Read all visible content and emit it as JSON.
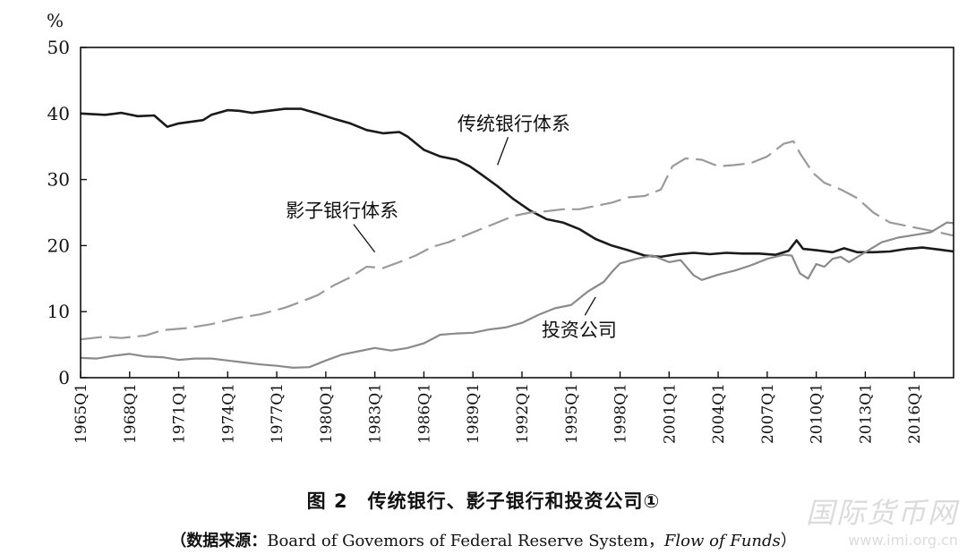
{
  "chart_data": {
    "type": "line",
    "y_unit": "%",
    "ylim": [
      0,
      50
    ],
    "yticks": [
      0,
      10,
      20,
      30,
      40,
      50
    ],
    "xlim": [
      1965.0,
      2018.4
    ],
    "xticks": [
      "1965Q1",
      "1968Q1",
      "1971Q1",
      "1974Q1",
      "1977Q1",
      "1980Q1",
      "1983Q1",
      "1986Q1",
      "1989Q1",
      "1992Q1",
      "1995Q1",
      "1998Q1",
      "2001Q1",
      "2004Q1",
      "2007Q1",
      "2010Q1",
      "2013Q1",
      "2016Q1"
    ],
    "grid": false,
    "series": [
      {
        "name": "传统银行体系",
        "color": "#1a1a1a",
        "style": "solid",
        "x": [
          1965.0,
          1966.5,
          1967.5,
          1968.5,
          1969.5,
          1970.3,
          1971.0,
          1972.5,
          1973.0,
          1974.0,
          1974.7,
          1975.5,
          1976.5,
          1977.5,
          1978.5,
          1979.5,
          1980.5,
          1981.5,
          1982.5,
          1983.5,
          1984.5,
          1985.0,
          1986.0,
          1987.0,
          1988.0,
          1988.8,
          1989.5,
          1990.5,
          1991.5,
          1992.5,
          1993.5,
          1994.5,
          1995.5,
          1996.5,
          1997.5,
          1998.5,
          1999.5,
          2000.5,
          2001.5,
          2002.5,
          2003.5,
          2004.5,
          2005.5,
          2006.5,
          2007.5,
          2008.3,
          2008.8,
          2009.2,
          2010.0,
          2011.0,
          2011.7,
          2012.5,
          2013.5,
          2014.5,
          2015.5,
          2016.5,
          2017.5,
          2018.4
        ],
        "values": [
          40.0,
          39.8,
          40.1,
          39.6,
          39.7,
          38.0,
          38.5,
          39.0,
          39.8,
          40.5,
          40.4,
          40.1,
          40.4,
          40.7,
          40.7,
          40.0,
          39.2,
          38.5,
          37.5,
          37.0,
          37.2,
          36.5,
          34.5,
          33.5,
          33.0,
          32.0,
          30.8,
          29.0,
          27.0,
          25.3,
          24.0,
          23.5,
          22.5,
          21.0,
          20.0,
          19.3,
          18.5,
          18.3,
          18.7,
          18.9,
          18.7,
          18.9,
          18.8,
          18.8,
          18.6,
          19.2,
          20.8,
          19.5,
          19.3,
          19.0,
          19.6,
          19.0,
          19.0,
          19.1,
          19.5,
          19.7,
          19.4,
          19.1
        ]
      },
      {
        "name": "影子银行体系",
        "color": "#9a9a9a",
        "style": "dashed",
        "x": [
          1965.0,
          1966.5,
          1967.5,
          1969.0,
          1970.0,
          1971.5,
          1973.0,
          1974.5,
          1976.0,
          1977.5,
          1978.5,
          1979.5,
          1980.5,
          1981.5,
          1982.5,
          1983.5,
          1984.5,
          1985.5,
          1986.5,
          1987.5,
          1988.5,
          1989.5,
          1990.5,
          1991.5,
          1992.5,
          1993.5,
          1994.5,
          1995.5,
          1996.5,
          1997.5,
          1998.5,
          1999.5,
          2000.5,
          2001.2,
          2002.0,
          2003.0,
          2004.0,
          2005.0,
          2006.0,
          2007.0,
          2008.0,
          2008.6,
          2009.0,
          2009.8,
          2010.5,
          2011.5,
          2012.5,
          2013.5,
          2014.5,
          2015.5,
          2016.5,
          2017.5,
          2018.4
        ],
        "values": [
          5.8,
          6.2,
          6.0,
          6.4,
          7.2,
          7.5,
          8.1,
          9.0,
          9.6,
          10.6,
          11.5,
          12.5,
          14.0,
          15.2,
          16.8,
          16.6,
          17.5,
          18.5,
          19.8,
          20.5,
          21.5,
          22.5,
          23.5,
          24.5,
          25.0,
          25.2,
          25.5,
          25.5,
          26.0,
          26.5,
          27.3,
          27.5,
          28.5,
          32.0,
          33.2,
          33.0,
          32.0,
          32.2,
          32.5,
          33.5,
          35.4,
          35.8,
          34.0,
          31.0,
          29.5,
          28.5,
          27.2,
          25.0,
          23.5,
          23.0,
          22.5,
          22.0,
          21.5
        ]
      },
      {
        "name": "投资公司",
        "color": "#8a8a8a",
        "style": "solid",
        "x": [
          1965.0,
          1966.0,
          1967.0,
          1968.0,
          1969.0,
          1970.0,
          1971.0,
          1972.0,
          1973.0,
          1974.0,
          1975.0,
          1976.0,
          1977.0,
          1978.0,
          1979.0,
          1980.0,
          1981.0,
          1982.0,
          1983.0,
          1984.0,
          1985.0,
          1986.0,
          1987.0,
          1988.0,
          1989.0,
          1990.0,
          1991.0,
          1992.0,
          1993.0,
          1994.0,
          1995.0,
          1996.0,
          1997.0,
          1997.5,
          1998.0,
          1999.0,
          2000.0,
          2001.0,
          2001.7,
          2002.5,
          2003.0,
          2004.0,
          2005.0,
          2006.0,
          2007.0,
          2008.0,
          2008.5,
          2009.0,
          2009.5,
          2010.0,
          2010.5,
          2011.0,
          2011.5,
          2012.0,
          2013.0,
          2014.0,
          2015.0,
          2016.0,
          2017.0,
          2018.0,
          2018.4
        ],
        "values": [
          3.0,
          2.9,
          3.3,
          3.6,
          3.2,
          3.1,
          2.7,
          2.9,
          2.9,
          2.6,
          2.3,
          2.0,
          1.8,
          1.5,
          1.6,
          2.6,
          3.5,
          4.0,
          4.5,
          4.1,
          4.5,
          5.2,
          6.5,
          6.7,
          6.8,
          7.3,
          7.6,
          8.3,
          9.5,
          10.5,
          11.0,
          13.0,
          14.5,
          16.0,
          17.3,
          18.0,
          18.5,
          17.5,
          17.8,
          15.5,
          14.8,
          15.6,
          16.2,
          17.0,
          18.0,
          18.6,
          18.5,
          15.8,
          15.0,
          17.2,
          16.8,
          18.0,
          18.3,
          17.5,
          19.0,
          20.5,
          21.2,
          21.6,
          22.0,
          23.5,
          23.4
        ]
      }
    ],
    "annotations": [
      {
        "text": "传统银行体系",
        "at": [
          1991.5,
          37.5
        ],
        "arrow_to": [
          1990.5,
          32.2
        ]
      },
      {
        "text": "影子银行体系",
        "at": [
          1981.0,
          24.3
        ],
        "arrow_to": [
          1983.0,
          19.0
        ]
      },
      {
        "text": "投资公司",
        "at": [
          1995.5,
          6.2
        ],
        "arrow_to": [
          1996.5,
          12.2
        ]
      }
    ]
  },
  "caption": "图 2　传统银行、影子银行和投资公司①",
  "source": {
    "label": "（数据来源：",
    "text": "Board of Govemors of Federal Reserve System，",
    "title": "Flow of Funds",
    "close": "）"
  },
  "watermark": {
    "name": "国际货币网",
    "url": "www.imi.org.cn"
  }
}
